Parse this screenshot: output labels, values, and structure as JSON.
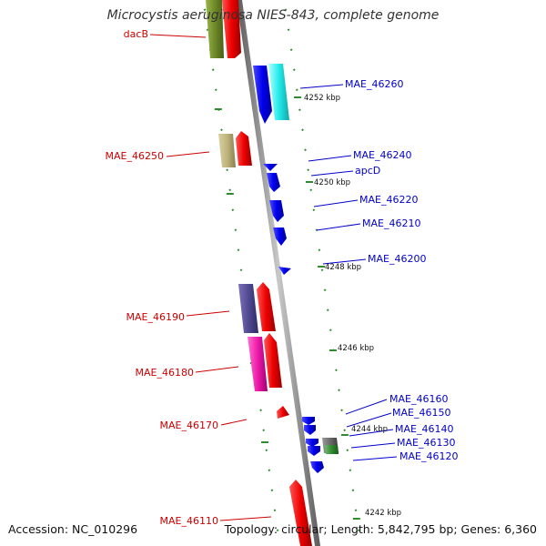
{
  "title": "Microcystis aeruginosa NIES-843, complete genome",
  "footer": {
    "accession": "Accession: NC_010296",
    "topology": "Topology: circular; Length: 5,842,795 bp; Genes: 6,360"
  },
  "colors": {
    "backbone": "#8c8c8c",
    "tick": "#2e8b2e",
    "label_left": "#cc0000",
    "label_right": "#0000cc"
  },
  "scale_labels": [
    "4252 kbp",
    "4250 kbp",
    "4248 kbp",
    "4246 kbp",
    "4244 kbp",
    "4242 kbp"
  ],
  "gene_labels_left": [
    "dacB",
    "MAE_46250",
    "MAE_46190",
    "MAE_46180",
    "MAE_46170",
    "MAE_46110"
  ],
  "gene_labels_right": [
    "MAE_46260",
    "MAE_46240",
    "apcD",
    "MAE_46220",
    "MAE_46210",
    "MAE_46200",
    "MAE_46160",
    "MAE_46150",
    "MAE_46140",
    "MAE_46130",
    "MAE_46120"
  ]
}
